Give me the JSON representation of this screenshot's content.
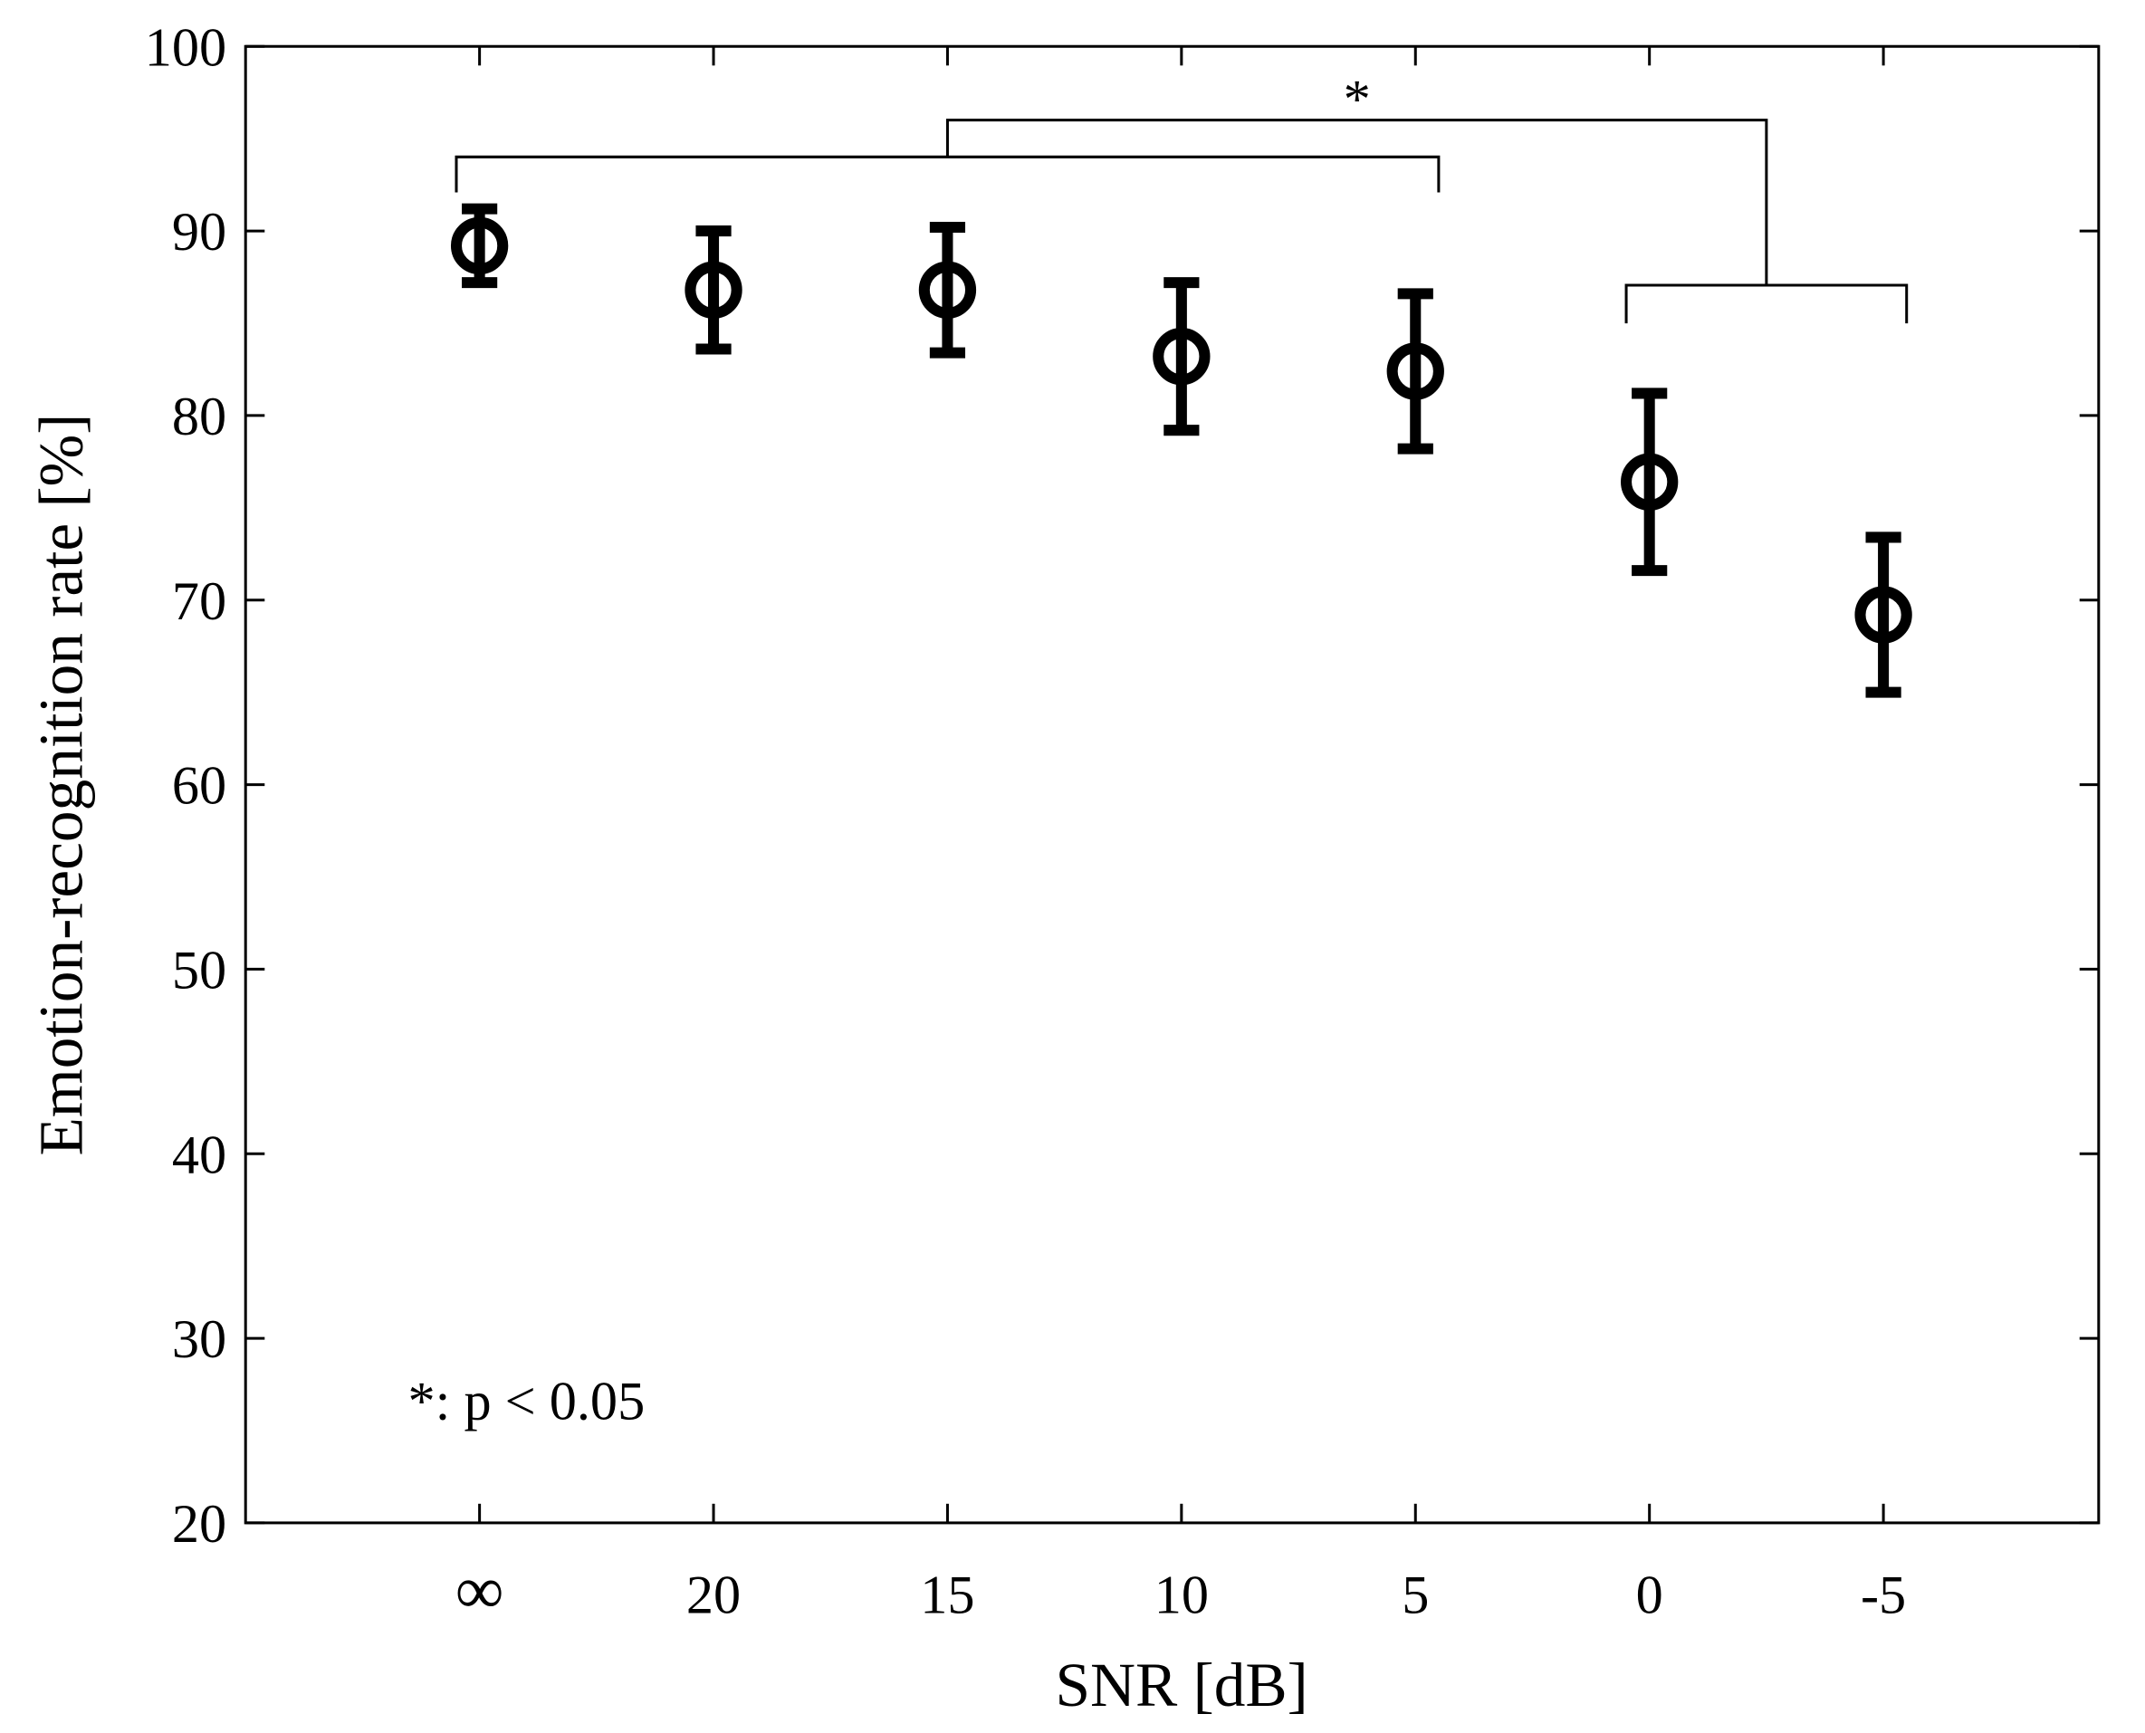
{
  "chart_data": {
    "type": "scatter",
    "x_label": "SNR [dB]",
    "y_label": "Emotion-recognition rate [%]",
    "categories": [
      "∞",
      "20",
      "15",
      "10",
      "5",
      "0",
      "-5"
    ],
    "values": [
      89.2,
      86.8,
      86.8,
      83.2,
      82.4,
      76.4,
      69.2
    ],
    "errors": [
      2.0,
      3.2,
      3.4,
      4.0,
      4.2,
      4.8,
      4.2
    ],
    "color": "#000000",
    "ylim": [
      20,
      100
    ],
    "yticks": [
      20,
      30,
      40,
      50,
      60,
      70,
      80,
      90,
      100
    ],
    "significance_label": "*",
    "note": "*: p < 0.05"
  }
}
